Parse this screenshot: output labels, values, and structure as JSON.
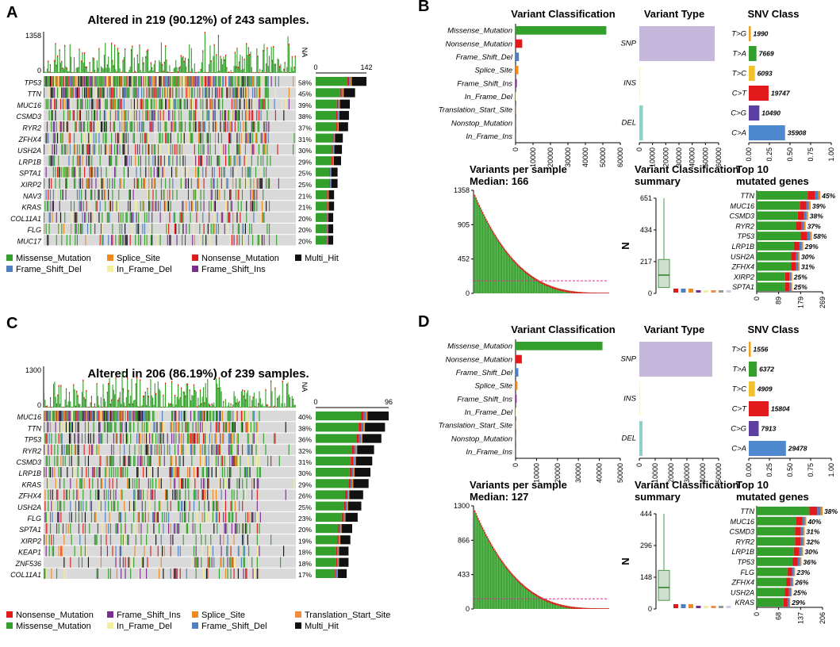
{
  "colors": {
    "Missense_Mutation": "#33a02c",
    "Nonsense_Mutation": "#e31a1c",
    "Frame_Shift_Del": "#4e7fc2",
    "Frame_Shift_Ins": "#7b2d8e",
    "Splice_Site": "#f08a1e",
    "In_Frame_Del": "#f3ee9b",
    "In_Frame_Ins": "#d8c9e3",
    "Translation_Start_Site": "#ee8c44",
    "Nonstop_Mutation": "#999999",
    "Multi_Hit": "#111111",
    "empty": "#d9d9d9",
    "snp": "#c5b7dc",
    "ins": "#f3ee9b",
    "del": "#8ecfc6",
    "ref_line": "#e7298a"
  },
  "oncoplots": [
    {
      "label": "A",
      "title": "Altered in 219 (90.12%) of 243 samples.",
      "tmb_max": "1358",
      "tmb_min": "0",
      "na": "NA",
      "bar_axis_min": "0",
      "bar_axis_max": "142",
      "genes": [
        {
          "gene": "TP53",
          "pct": "58%",
          "rate": 0.58
        },
        {
          "gene": "TTN",
          "pct": "45%",
          "rate": 0.45
        },
        {
          "gene": "MUC16",
          "pct": "39%",
          "rate": 0.39
        },
        {
          "gene": "CSMD3",
          "pct": "38%",
          "rate": 0.38
        },
        {
          "gene": "RYR2",
          "pct": "37%",
          "rate": 0.37
        },
        {
          "gene": "ZFHX4",
          "pct": "31%",
          "rate": 0.31
        },
        {
          "gene": "USH2A",
          "pct": "30%",
          "rate": 0.3
        },
        {
          "gene": "LRP1B",
          "pct": "29%",
          "rate": 0.29
        },
        {
          "gene": "SPTA1",
          "pct": "25%",
          "rate": 0.25
        },
        {
          "gene": "XIRP2",
          "pct": "25%",
          "rate": 0.25
        },
        {
          "gene": "NAV3",
          "pct": "21%",
          "rate": 0.21
        },
        {
          "gene": "KRAS",
          "pct": "21%",
          "rate": 0.21
        },
        {
          "gene": "COL11A1",
          "pct": "20%",
          "rate": 0.2
        },
        {
          "gene": "FLG",
          "pct": "20%",
          "rate": 0.2
        },
        {
          "gene": "MUC17",
          "pct": "20%",
          "rate": 0.2
        }
      ],
      "legend": [
        "Missense_Mutation",
        "Splice_Site",
        "Nonsense_Mutation",
        "Multi_Hit",
        "Frame_Shift_Del",
        "In_Frame_Del",
        "Frame_Shift_Ins"
      ]
    },
    {
      "label": "C",
      "title": "Altered in 206 (86.19%) of 239 samples.",
      "tmb_max": "1300",
      "tmb_min": "0",
      "na": "NA",
      "bar_axis_min": "0",
      "bar_axis_max": "96",
      "genes": [
        {
          "gene": "MUC16",
          "pct": "40%",
          "rate": 0.4
        },
        {
          "gene": "TTN",
          "pct": "38%",
          "rate": 0.38
        },
        {
          "gene": "TP53",
          "pct": "36%",
          "rate": 0.36
        },
        {
          "gene": "RYR2",
          "pct": "32%",
          "rate": 0.32
        },
        {
          "gene": "CSMD3",
          "pct": "31%",
          "rate": 0.31
        },
        {
          "gene": "LRP1B",
          "pct": "30%",
          "rate": 0.3
        },
        {
          "gene": "KRAS",
          "pct": "29%",
          "rate": 0.29
        },
        {
          "gene": "ZFHX4",
          "pct": "26%",
          "rate": 0.26
        },
        {
          "gene": "USH2A",
          "pct": "25%",
          "rate": 0.25
        },
        {
          "gene": "FLG",
          "pct": "23%",
          "rate": 0.23
        },
        {
          "gene": "SPTA1",
          "pct": "20%",
          "rate": 0.2
        },
        {
          "gene": "XIRP2",
          "pct": "19%",
          "rate": 0.19
        },
        {
          "gene": "KEAP1",
          "pct": "18%",
          "rate": 0.18
        },
        {
          "gene": "ZNF536",
          "pct": "18%",
          "rate": 0.18
        },
        {
          "gene": "COL11A1",
          "pct": "17%",
          "rate": 0.17
        }
      ],
      "legend": [
        "Nonsense_Mutation",
        "Frame_Shift_Ins",
        "Splice_Site",
        "Translation_Start_Site",
        "Missense_Mutation",
        "In_Frame_Del",
        "Frame_Shift_Del",
        "Multi_Hit"
      ]
    }
  ],
  "summaries": [
    {
      "label": "B",
      "vc_title": "Variant Classification",
      "vt_title": "Variant Type",
      "snv_title": "SNV Class",
      "vps_title": "Variants per sample",
      "vps_median": "Median: 166",
      "vcs_title": "Variant Classification",
      "vcs_title2": "summary",
      "top_title": "Top 10",
      "top_title2": "mutated genes",
      "n_label": "N"
    },
    {
      "label": "D",
      "vc_title": "Variant Classification",
      "vt_title": "Variant Type",
      "snv_title": "SNV Class",
      "vps_title": "Variants per sample",
      "vps_median": "Median: 127",
      "vcs_title": "Variant Classification",
      "vcs_title2": "summary",
      "top_title": "Top 10",
      "top_title2": "mutated genes",
      "n_label": "N"
    }
  ],
  "chart_data": [
    {
      "type": "bar",
      "panel": "B",
      "title": "Variant Classification",
      "categories": [
        "Missense_Mutation",
        "Nonsense_Mutation",
        "Frame_Shift_Del",
        "Splice_Site",
        "Frame_Shift_Ins",
        "In_Frame_Del",
        "Translation_Start_Site",
        "Nonstop_Mutation",
        "In_Frame_Ins"
      ],
      "values": [
        52000,
        3800,
        1900,
        1600,
        700,
        250,
        120,
        60,
        40
      ],
      "xlim": [
        0,
        60000
      ],
      "ticks": [
        "0",
        "10000",
        "20000",
        "30000",
        "40000",
        "50000",
        "60000"
      ]
    },
    {
      "type": "bar",
      "panel": "B",
      "title": "Variant Type",
      "categories": [
        "SNP",
        "INS",
        "DEL"
      ],
      "values": [
        57000,
        300,
        2700
      ],
      "xlim": [
        0,
        60000
      ],
      "ticks": [
        "0",
        "10000",
        "20000",
        "30000",
        "40000",
        "50000",
        "60000"
      ]
    },
    {
      "type": "bar",
      "panel": "B",
      "title": "SNV Class",
      "categories": [
        "T>G",
        "T>A",
        "T>C",
        "C>T",
        "C>G",
        "C>A"
      ],
      "values": [
        1990,
        7669,
        6093,
        19747,
        10490,
        35908
      ],
      "labels": [
        "1990",
        "7669",
        "6093",
        "19747",
        "10490",
        "35908"
      ],
      "fractions": [
        0.024,
        0.093,
        0.074,
        0.24,
        0.128,
        0.44
      ],
      "xlim": [
        0,
        1
      ],
      "ticks": [
        "0.00",
        "0.25",
        "0.50",
        "0.75",
        "1.00"
      ]
    },
    {
      "type": "bar",
      "panel": "B",
      "title": "Variants per sample",
      "subtitle": "Median: 166",
      "ymax": 1358,
      "median": 166,
      "ticks": [
        "0",
        "452",
        "905",
        "1358"
      ]
    },
    {
      "type": "box",
      "panel": "B",
      "title": "Variant Classification summary",
      "ylabel": "N",
      "ymax": 651,
      "ticks": [
        "0",
        "217",
        "434",
        "651"
      ],
      "box": {
        "min": 0,
        "q1": 40,
        "median": 125,
        "q3": 232,
        "max": 651
      }
    },
    {
      "type": "bar",
      "panel": "B",
      "title": "Top 10 mutated genes",
      "categories": [
        "TTN",
        "MUC16",
        "CSMD3",
        "RYR2",
        "TP53",
        "LRP1B",
        "USH2A",
        "ZFHX4",
        "XIRP2",
        "SPTA1"
      ],
      "values": [
        260,
        220,
        210,
        200,
        225,
        190,
        175,
        175,
        145,
        145
      ],
      "labels": [
        "45%",
        "39%",
        "38%",
        "37%",
        "58%",
        "29%",
        "30%",
        "31%",
        "25%",
        "25%"
      ],
      "xlim": [
        0,
        269
      ],
      "ticks": [
        "0",
        "89",
        "179",
        "269"
      ]
    },
    {
      "type": "bar",
      "panel": "D",
      "title": "Variant Classification",
      "categories": [
        "Missense_Mutation",
        "Nonsense_Mutation",
        "Frame_Shift_Del",
        "Splice_Site",
        "Frame_Shift_Ins",
        "In_Frame_Del",
        "Translation_Start_Site",
        "Nonstop_Mutation",
        "In_Frame_Ins"
      ],
      "values": [
        41500,
        3000,
        1300,
        900,
        500,
        200,
        120,
        60,
        30
      ],
      "xlim": [
        0,
        50000
      ],
      "ticks": [
        "0",
        "10000",
        "20000",
        "30000",
        "40000",
        "50000"
      ]
    },
    {
      "type": "bar",
      "panel": "D",
      "title": "Variant Type",
      "categories": [
        "SNP",
        "INS",
        "DEL"
      ],
      "values": [
        46000,
        250,
        2000
      ],
      "xlim": [
        0,
        50000
      ],
      "ticks": [
        "0",
        "10000",
        "20000",
        "30000",
        "40000",
        "50000"
      ]
    },
    {
      "type": "bar",
      "panel": "D",
      "title": "SNV Class",
      "categories": [
        "T>G",
        "T>A",
        "T>C",
        "C>T",
        "C>G",
        "C>A"
      ],
      "values": [
        1556,
        6372,
        4909,
        15804,
        7913,
        29478
      ],
      "labels": [
        "1556",
        "6372",
        "4909",
        "15804",
        "7913",
        "29478"
      ],
      "fractions": [
        0.024,
        0.097,
        0.074,
        0.24,
        0.12,
        0.45
      ],
      "xlim": [
        0,
        1
      ],
      "ticks": [
        "0.00",
        "0.25",
        "0.50",
        "0.75",
        "1.00"
      ]
    },
    {
      "type": "bar",
      "panel": "D",
      "title": "Variants per sample",
      "subtitle": "Median: 127",
      "ymax": 1300,
      "median": 127,
      "ticks": [
        "0",
        "433",
        "866",
        "1300"
      ]
    },
    {
      "type": "box",
      "panel": "D",
      "title": "Variant Classification summary",
      "ylabel": "N",
      "ymax": 444,
      "ticks": [
        "0",
        "148",
        "296",
        "444"
      ],
      "box": {
        "min": 0,
        "q1": 40,
        "median": 100,
        "q3": 180,
        "max": 444
      }
    },
    {
      "type": "bar",
      "panel": "D",
      "title": "Top 10 mutated genes",
      "categories": [
        "TTN",
        "MUC16",
        "CSMD3",
        "RYR2",
        "LRP1B",
        "TP53",
        "FLG",
        "ZFHX4",
        "USH2A",
        "KRAS"
      ],
      "values": [
        206,
        155,
        150,
        150,
        145,
        140,
        120,
        115,
        110,
        105
      ],
      "labels": [
        "38%",
        "40%",
        "31%",
        "32%",
        "30%",
        "36%",
        "23%",
        "26%",
        "25%",
        "29%"
      ],
      "xlim": [
        0,
        206
      ],
      "ticks": [
        "0",
        "68",
        "137",
        "206"
      ]
    }
  ]
}
